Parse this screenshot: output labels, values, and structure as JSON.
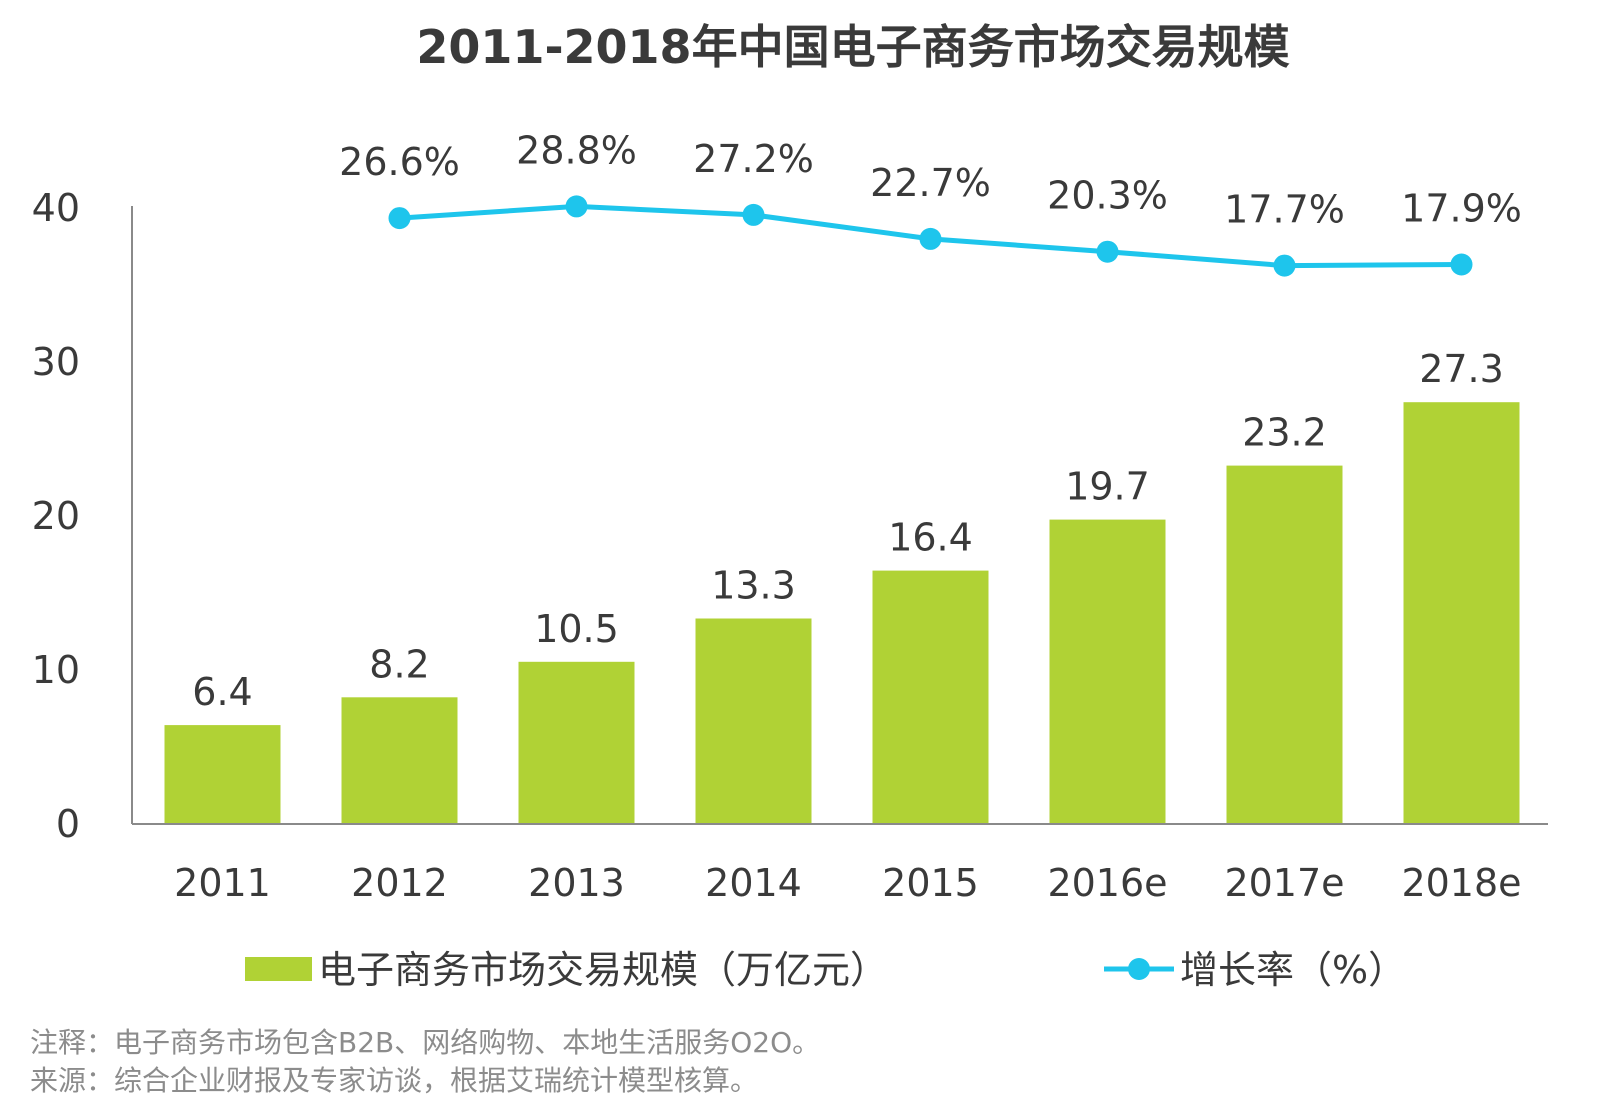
{
  "chart_data": {
    "type": "bar",
    "title": "2011-2018年中国电子商务市场交易规模",
    "categories": [
      "2011",
      "2012",
      "2013",
      "2014",
      "2015",
      "2016e",
      "2017e",
      "2018e"
    ],
    "series": [
      {
        "name": "电子商务市场交易规模（万亿元）",
        "kind": "bar",
        "color": "#b0d235",
        "values": [
          6.4,
          8.2,
          10.5,
          13.3,
          16.4,
          19.7,
          23.2,
          27.3
        ]
      },
      {
        "name": "增长率（%）",
        "kind": "line",
        "color": "#1ec5ec",
        "values": [
          null,
          26.6,
          28.8,
          27.2,
          22.7,
          20.3,
          17.7,
          17.9
        ],
        "labels": [
          null,
          "26.6%",
          "28.8%",
          "27.2%",
          "22.7%",
          "20.3%",
          "17.7%",
          "17.9%"
        ]
      }
    ],
    "value_labels": [
      "6.4",
      "8.2",
      "10.5",
      "13.3",
      "16.4",
      "19.7",
      "23.2",
      "27.3"
    ],
    "y_ticks": [
      "0",
      "10",
      "20",
      "30",
      "40"
    ],
    "ylim": [
      0,
      40
    ],
    "xlabel": "",
    "ylabel": "",
    "legend_position": "bottom"
  },
  "notes": [
    "注释：电子商务市场包含B2B、网络购物、本地生活服务O2O。",
    "来源：综合企业财报及专家访谈，根据艾瑞统计模型核算。"
  ]
}
